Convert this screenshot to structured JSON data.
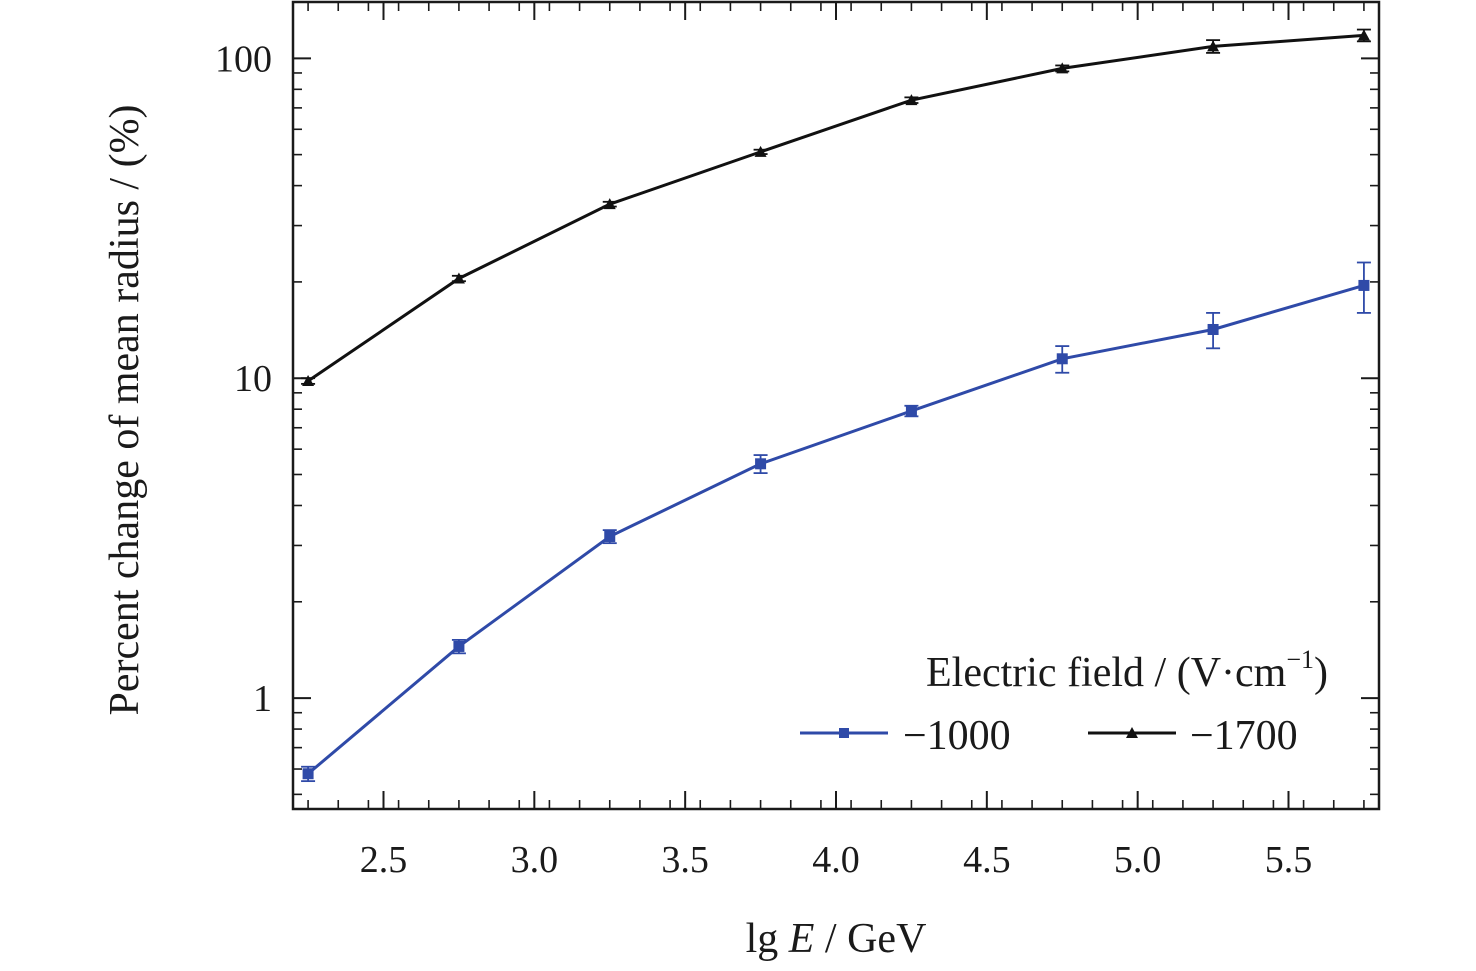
{
  "chart_data": {
    "type": "line",
    "title": "",
    "xlabel_prefix": "lg ",
    "xlabel_var": "E",
    "xlabel_suffix": " / GeV",
    "ylabel": "Percent change of mean radius / (%)",
    "xlim": [
      2.2,
      5.8
    ],
    "ylim": [
      0.45,
      150
    ],
    "yscale": "log",
    "x_ticks": [
      "2.5",
      "3.0",
      "3.5",
      "4.0",
      "4.5",
      "5.0",
      "5.5"
    ],
    "x_tick_values": [
      2.5,
      3.0,
      3.5,
      4.0,
      4.5,
      5.0,
      5.5
    ],
    "y_ticks": [
      "1",
      "10",
      "100"
    ],
    "y_tick_values": [
      1,
      10,
      100
    ],
    "grid": false,
    "legend": {
      "position": "bottom-right",
      "title_main": "Electric field / (V·cm",
      "title_exp": "−1",
      "title_close": ")"
    },
    "x": [
      2.25,
      2.75,
      3.25,
      3.75,
      4.25,
      4.75,
      5.25,
      5.75
    ],
    "series": [
      {
        "name": "−1000",
        "color": "#2f4aa8",
        "marker": "square",
        "values": [
          0.58,
          1.45,
          3.2,
          5.4,
          7.9,
          11.5,
          14.2,
          19.5
        ],
        "errors": [
          0.03,
          0.07,
          0.15,
          0.35,
          0.3,
          1.1,
          1.8,
          3.5
        ]
      },
      {
        "name": "−1700",
        "color": "#111111",
        "marker": "triangle",
        "values": [
          9.8,
          20.5,
          35.0,
          51.0,
          74.0,
          93.0,
          109.0,
          118.0
        ],
        "errors": [
          0.2,
          0.4,
          0.6,
          0.8,
          1.5,
          2.0,
          5.0,
          5.0
        ]
      }
    ]
  }
}
